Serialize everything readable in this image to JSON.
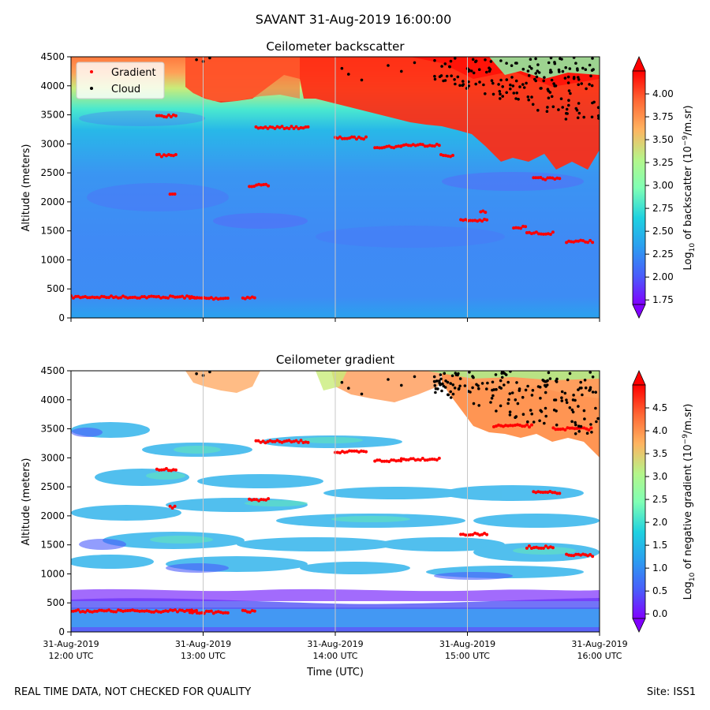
{
  "figure": {
    "suptitle": "SAVANT 31-Aug-2019 16:00:00",
    "footer_left": "REAL TIME DATA, NOT CHECKED FOR QUALITY",
    "footer_right": "Site: ISS1"
  },
  "legend": {
    "entries": [
      {
        "label": "Gradient",
        "color": "#ff0000"
      },
      {
        "label": "Cloud",
        "color": "#000000"
      }
    ]
  },
  "chart_data": [
    {
      "type": "heatmap",
      "title": "Ceilometer backscatter",
      "xlabel": "",
      "ylabel": "Altitude (meters)",
      "ylim": [
        0,
        4500
      ],
      "yticks": [
        "0",
        "500",
        "1000",
        "1500",
        "2000",
        "2500",
        "3000",
        "3500",
        "4000",
        "4500"
      ],
      "xlim": [
        0,
        4
      ],
      "colorbar": {
        "label": "Log10 of backscatter (10^-9/m.sr)",
        "label_pre": "Log",
        "label_sub": "10",
        "label_mid": " of backscatter (10",
        "label_sup": "−9",
        "label_post": "/m.sr)",
        "range": [
          1.7,
          4.25
        ],
        "extend": "both",
        "ticks": [
          "1.75",
          "2.00",
          "2.25",
          "2.50",
          "2.75",
          "3.00",
          "3.25",
          "3.50",
          "3.75",
          "4.00"
        ]
      },
      "legend_position": "upper-left",
      "gradient_layers": [
        {
          "x0": 0.0,
          "x1": 0.96,
          "y": 360
        },
        {
          "x0": 0.9,
          "x1": 1.2,
          "y": 340
        },
        {
          "x0": 1.3,
          "x1": 1.4,
          "y": 350
        },
        {
          "x0": 0.65,
          "x1": 0.8,
          "y": 3480
        },
        {
          "x0": 0.65,
          "x1": 0.8,
          "y": 2800
        },
        {
          "x0": 0.75,
          "x1": 0.8,
          "y": 2150
        },
        {
          "x0": 1.35,
          "x1": 1.5,
          "y": 2280
        },
        {
          "x0": 1.4,
          "x1": 1.8,
          "y": 3280
        },
        {
          "x0": 2.0,
          "x1": 2.25,
          "y": 3100
        },
        {
          "x0": 2.3,
          "x1": 2.5,
          "y": 2950
        },
        {
          "x0": 2.5,
          "x1": 2.8,
          "y": 2980
        },
        {
          "x0": 2.8,
          "x1": 2.9,
          "y": 2800
        },
        {
          "x0": 2.95,
          "x1": 3.15,
          "y": 1680
        },
        {
          "x0": 3.1,
          "x1": 3.15,
          "y": 1830
        },
        {
          "x0": 3.45,
          "x1": 3.65,
          "y": 1460
        },
        {
          "x0": 3.35,
          "x1": 3.45,
          "y": 1560
        },
        {
          "x0": 3.5,
          "x1": 3.7,
          "y": 2400
        },
        {
          "x0": 3.75,
          "x1": 3.95,
          "y": 1320
        }
      ],
      "cloud_region": {
        "x0": 2.75,
        "x1": 4.0,
        "y0": 3400,
        "y1": 4500
      }
    },
    {
      "type": "heatmap",
      "title": "Ceilometer gradient",
      "xlabel": "Time (UTC)",
      "ylabel": "Altitude (meters)",
      "ylim": [
        0,
        4500
      ],
      "yticks": [
        "0",
        "500",
        "1000",
        "1500",
        "2000",
        "2500",
        "3000",
        "3500",
        "4000",
        "4500"
      ],
      "xlim": [
        0,
        4
      ],
      "xticks": [
        {
          "line1": "31-Aug-2019",
          "line2": "12:00 UTC"
        },
        {
          "line1": "31-Aug-2019",
          "line2": "13:00 UTC"
        },
        {
          "line1": "31-Aug-2019",
          "line2": "14:00 UTC"
        },
        {
          "line1": "31-Aug-2019",
          "line2": "15:00 UTC"
        },
        {
          "line1": "31-Aug-2019",
          "line2": "16:00 UTC"
        }
      ],
      "colorbar": {
        "label": "Log10 of negative gradient (10^-9/m.sr)",
        "label_pre": "Log",
        "label_sub": "10",
        "label_mid": " of negative gradient (10",
        "label_sup": "−9",
        "label_post": "/m.sr)",
        "range": [
          -0.1,
          5.0
        ],
        "extend": "both",
        "ticks": [
          "0.0",
          "0.5",
          "1.0",
          "1.5",
          "2.0",
          "2.5",
          "3.0",
          "3.5",
          "4.0",
          "4.5"
        ]
      },
      "gradient_layers": [
        {
          "x0": 0.0,
          "x1": 0.96,
          "y": 360
        },
        {
          "x0": 0.9,
          "x1": 1.2,
          "y": 340
        },
        {
          "x0": 1.3,
          "x1": 1.4,
          "y": 350
        },
        {
          "x0": 0.65,
          "x1": 0.8,
          "y": 2800
        },
        {
          "x0": 0.75,
          "x1": 0.8,
          "y": 2150
        },
        {
          "x0": 1.35,
          "x1": 1.5,
          "y": 2280
        },
        {
          "x0": 1.4,
          "x1": 1.8,
          "y": 3280
        },
        {
          "x0": 2.0,
          "x1": 2.25,
          "y": 3100
        },
        {
          "x0": 2.3,
          "x1": 2.5,
          "y": 2950
        },
        {
          "x0": 2.5,
          "x1": 2.8,
          "y": 2980
        },
        {
          "x0": 2.95,
          "x1": 3.15,
          "y": 1680
        },
        {
          "x0": 3.45,
          "x1": 3.65,
          "y": 1460
        },
        {
          "x0": 3.5,
          "x1": 3.7,
          "y": 2400
        },
        {
          "x0": 3.75,
          "x1": 3.95,
          "y": 1320
        },
        {
          "x0": 3.2,
          "x1": 3.5,
          "y": 3550
        },
        {
          "x0": 3.65,
          "x1": 3.95,
          "y": 3500
        }
      ],
      "cloud_region": {
        "x0": 2.75,
        "x1": 4.0,
        "y0": 3400,
        "y1": 4500
      }
    }
  ]
}
